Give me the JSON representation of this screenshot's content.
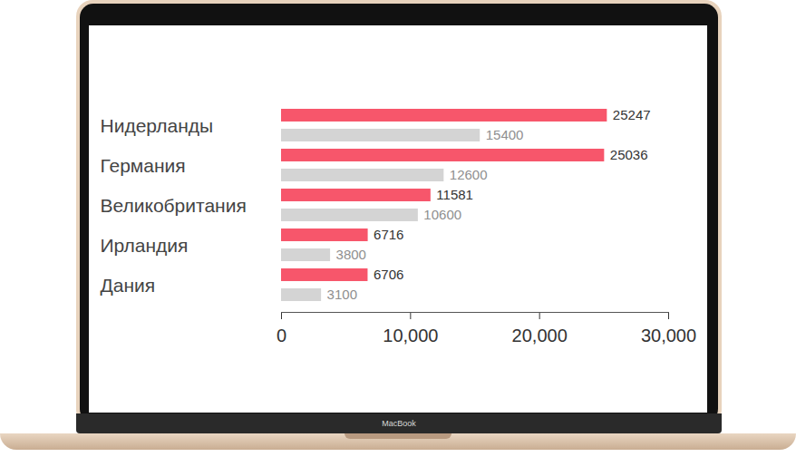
{
  "chart_data": {
    "type": "bar",
    "orientation": "horizontal",
    "categories": [
      "Нидерланды",
      "Германия",
      "Великобритания",
      "Ирландия",
      "Дания"
    ],
    "series": [
      {
        "color": "#f7566b",
        "values": [
          25247,
          25036,
          11581,
          6716,
          6706
        ]
      },
      {
        "color": "#d4d4d4",
        "values": [
          15400,
          12600,
          10600,
          3800,
          3100
        ]
      }
    ],
    "xlim": [
      0,
      30000
    ],
    "xticks": [
      0,
      {
        "value": 10000,
        "label": "10,000"
      },
      {
        "value": 20000,
        "label": "20,000"
      },
      {
        "value": 30000,
        "label": "30,000"
      }
    ],
    "data_labels": true,
    "grid": false
  },
  "frame": {
    "label": "MacBook"
  }
}
